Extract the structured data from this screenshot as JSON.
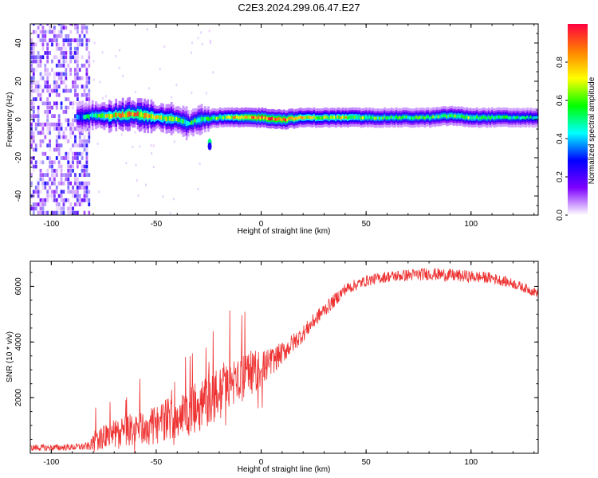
{
  "figure": {
    "title": "C2E3.2024.299.06.47.E27"
  },
  "chart_data": [
    {
      "type": "heatmap",
      "title": "C2E3.2024.299.06.47.E27",
      "xlabel": "Height of straight line (km)",
      "ylabel": "Frequency (Hz)",
      "xlim": [
        -110,
        132
      ],
      "ylim": [
        -50,
        50
      ],
      "xticks": [
        -100,
        -50,
        0,
        50,
        100
      ],
      "yticks": [
        -40,
        -20,
        0,
        20,
        40
      ],
      "colorbar": {
        "label": "Normalized spectral amplitude",
        "range": [
          0,
          1
        ],
        "ticks": [
          0.0,
          0.2,
          0.4,
          0.6,
          0.8
        ],
        "colormap": [
          "#ffffff",
          "#7f00ff",
          "#0000ff",
          "#00ffff",
          "#00ff00",
          "#ffff00",
          "#ff8000",
          "#ff0040"
        ]
      },
      "noise_region": {
        "x_start": -110,
        "x_end": -82,
        "amplitude": 0.12
      },
      "ridge": {
        "x": [
          -88,
          -80,
          -70,
          -60,
          -50,
          -40,
          -35,
          -30,
          -20,
          -10,
          0,
          10,
          20,
          30,
          40,
          50,
          60,
          70,
          80,
          90,
          100,
          110,
          120,
          132
        ],
        "center_hz": [
          1,
          2,
          2,
          3,
          1,
          0,
          -2,
          0,
          1,
          1,
          1,
          0,
          1,
          1,
          1,
          1,
          1,
          1,
          1,
          2,
          1,
          1,
          1,
          1
        ],
        "peak_amplitude": [
          0.35,
          0.55,
          0.75,
          0.8,
          0.7,
          0.6,
          0.5,
          0.55,
          0.6,
          0.8,
          0.9,
          0.9,
          0.7,
          0.65,
          0.7,
          0.6,
          0.55,
          0.55,
          0.55,
          0.6,
          0.6,
          0.55,
          0.5,
          0.45
        ]
      }
    },
    {
      "type": "line",
      "xlabel": "Height of straight line (km)",
      "ylabel": "SNR (10 * v/v)",
      "xlim": [
        -110,
        132
      ],
      "ylim": [
        0,
        6900
      ],
      "xticks": [
        -100,
        -50,
        0,
        50,
        100
      ],
      "yticks": [
        2000,
        4000,
        6000
      ],
      "series": [
        {
          "name": "SNR",
          "color": "#ee3333",
          "x": [
            -110,
            -100,
            -90,
            -82,
            -78,
            -70,
            -60,
            -50,
            -45,
            -40,
            -35,
            -30,
            -25,
            -20,
            -15,
            -10,
            -5,
            0,
            5,
            10,
            15,
            20,
            25,
            30,
            35,
            40,
            50,
            60,
            70,
            80,
            90,
            100,
            110,
            120,
            132
          ],
          "values": [
            200,
            200,
            220,
            250,
            500,
            700,
            850,
            1000,
            1250,
            1300,
            1450,
            1700,
            1900,
            2100,
            2450,
            2700,
            2900,
            3000,
            3300,
            3600,
            3950,
            4300,
            4750,
            5150,
            5500,
            5900,
            6200,
            6350,
            6400,
            6450,
            6400,
            6350,
            6300,
            6100,
            5750
          ],
          "noise_amplitude": [
            120,
            120,
            120,
            150,
            400,
            500,
            600,
            700,
            750,
            800,
            850,
            900,
            950,
            950,
            900,
            850,
            800,
            700,
            500,
            400,
            350,
            300,
            280,
            260,
            250,
            220,
            200,
            200,
            220,
            230,
            230,
            220,
            200,
            180,
            160
          ]
        }
      ]
    }
  ]
}
